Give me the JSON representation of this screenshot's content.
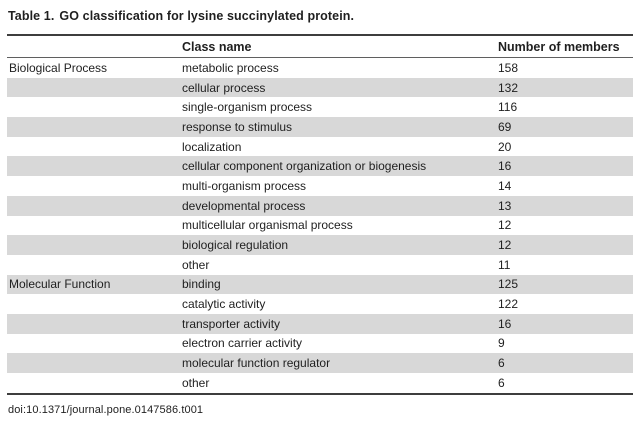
{
  "caption": {
    "label": "Table 1.",
    "text": "GO classification for lysine succinylated protein."
  },
  "columns": {
    "group": "",
    "class_name": "Class name",
    "members": "Number of members"
  },
  "rows": [
    {
      "group": "Biological Process",
      "class": "metabolic process",
      "members": "158"
    },
    {
      "group": "",
      "class": "cellular process",
      "members": "132"
    },
    {
      "group": "",
      "class": "single-organism process",
      "members": "116"
    },
    {
      "group": "",
      "class": "response to stimulus",
      "members": "69"
    },
    {
      "group": "",
      "class": "localization",
      "members": "20"
    },
    {
      "group": "",
      "class": "cellular component organization or biogenesis",
      "members": "16"
    },
    {
      "group": "",
      "class": "multi-organism process",
      "members": "14"
    },
    {
      "group": "",
      "class": "developmental process",
      "members": "13"
    },
    {
      "group": "",
      "class": "multicellular organismal process",
      "members": "12"
    },
    {
      "group": "",
      "class": "biological regulation",
      "members": "12"
    },
    {
      "group": "",
      "class": "other",
      "members": "11"
    },
    {
      "group": "Molecular Function",
      "class": "binding",
      "members": "125"
    },
    {
      "group": "",
      "class": "catalytic activity",
      "members": "122"
    },
    {
      "group": "",
      "class": "transporter activity",
      "members": "16"
    },
    {
      "group": "",
      "class": "electron carrier activity",
      "members": "9"
    },
    {
      "group": "",
      "class": "molecular function regulator",
      "members": "6"
    },
    {
      "group": "",
      "class": "other",
      "members": "6"
    }
  ],
  "footer": {
    "doi": "doi:10.1371/journal.pone.0147586.t001"
  },
  "colors": {
    "stripe": "#d8d8d8",
    "rule_heavy": "#3e3e3e",
    "rule_light": "#5f5f5f",
    "text": "#1f1f1f"
  },
  "chart_data": {
    "type": "table",
    "title": "Table 1. GO classification for lysine succinylated protein.",
    "columns": [
      "",
      "Class name",
      "Number of members"
    ],
    "groups": [
      {
        "name": "Biological Process",
        "classes": [
          "metabolic process",
          "cellular process",
          "single-organism process",
          "response to stimulus",
          "localization",
          "cellular component organization or biogenesis",
          "multi-organism process",
          "developmental process",
          "multicellular organismal process",
          "biological regulation",
          "other"
        ],
        "members": [
          158,
          132,
          116,
          69,
          20,
          16,
          14,
          13,
          12,
          12,
          11
        ]
      },
      {
        "name": "Molecular Function",
        "classes": [
          "binding",
          "catalytic activity",
          "transporter activity",
          "electron carrier activity",
          "molecular function regulator",
          "other"
        ],
        "members": [
          125,
          122,
          16,
          9,
          6,
          6
        ]
      }
    ]
  }
}
